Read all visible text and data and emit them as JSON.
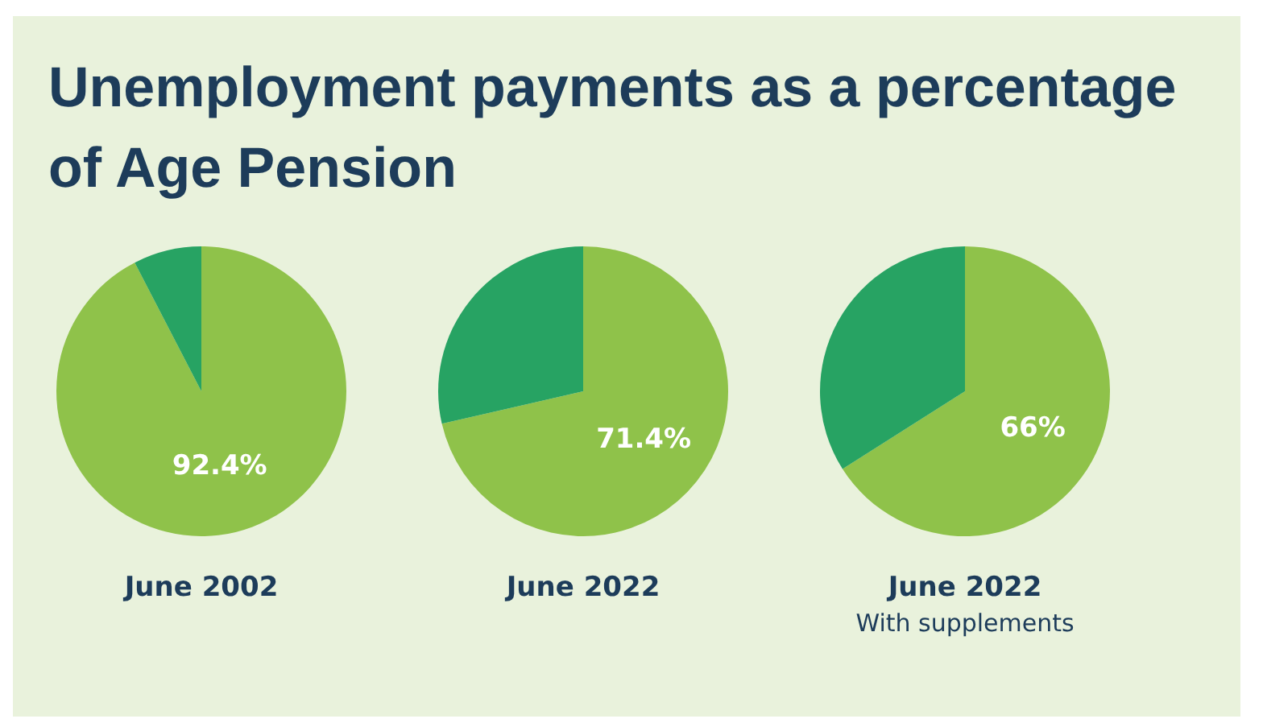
{
  "chart_data": [
    {
      "type": "pie",
      "title": "Unemployment payments as a percentage of Age Pension",
      "xlabel": "June 2002",
      "categories": [
        null,
        null
      ],
      "values": [
        92.4,
        7.6
      ],
      "colors": [
        "#8fc24a",
        "#27a363"
      ],
      "value_labels": [
        "92.4%",
        null
      ]
    },
    {
      "type": "pie",
      "xlabel": "June 2022",
      "categories": [
        null,
        null
      ],
      "values": [
        71.4,
        28.6
      ],
      "colors": [
        "#8fc24a",
        "#27a363"
      ],
      "value_labels": [
        "71.4%",
        null
      ]
    },
    {
      "type": "pie",
      "xlabel": "June 2022",
      "annotations": [
        "With supplements"
      ],
      "categories": [
        null,
        null
      ],
      "values": [
        66,
        34
      ],
      "colors": [
        "#8fc24a",
        "#27a363"
      ],
      "value_labels": [
        "66%",
        null
      ]
    }
  ]
}
